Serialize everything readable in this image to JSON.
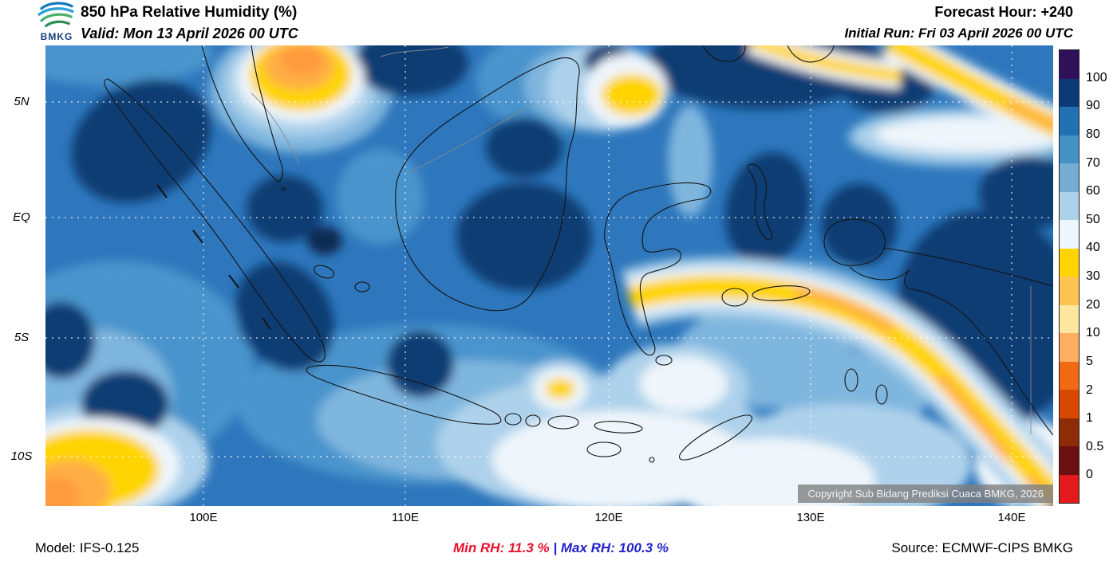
{
  "header": {
    "logo_text": "BMKG",
    "title": "850 hPa Relative Humidity (%)",
    "valid_line": "Valid: Mon 13 April 2026 00 UTC",
    "forecast_hour": "Forecast Hour: +240",
    "initial_run": "Initial Run: Fri 03 April 2026 00 UTC"
  },
  "map": {
    "lat_ticks": [
      "5N",
      "EQ",
      "5S",
      "10S"
    ],
    "lon_ticks": [
      "100E",
      "110E",
      "120E",
      "130E",
      "140E"
    ],
    "copyright": "Copyright Sub Bidang Prediksi Cuaca BMKG, 2026"
  },
  "colorbar": {
    "labels": [
      "100",
      "90",
      "80",
      "70",
      "60",
      "50",
      "40",
      "30",
      "20",
      "10",
      "5",
      "2",
      "1",
      "0.5",
      "0"
    ],
    "band_colors": [
      "#2e1158",
      "#0b3a78",
      "#2171b5",
      "#4292c6",
      "#74add1",
      "#aed1ea",
      "#eef5fb",
      "#ffd400",
      "#fdc54f",
      "#fee8a0",
      "#fdae61",
      "#f16913",
      "#d94801",
      "#8f2c08",
      "#6b0f10",
      "#e31a1c"
    ]
  },
  "footer": {
    "model": "Model: IFS-0.125",
    "min_rh": "Min RH:  11.3 %",
    "separator": "|",
    "max_rh": "Max RH: 100.3 %",
    "source": "Source: ECMWF-CIPS BMKG",
    "min_color": "#e8112d",
    "max_color": "#2222cc"
  }
}
